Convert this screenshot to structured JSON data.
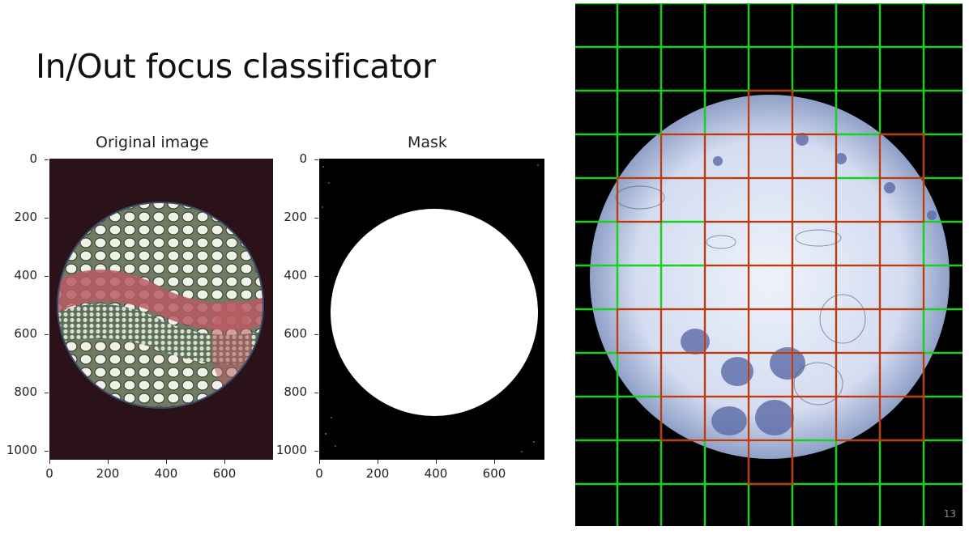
{
  "slide": {
    "title": "In/Out focus classificator",
    "slide_number": "13"
  },
  "plots": {
    "original": {
      "title": "Original image",
      "yticks": [
        "0",
        "200",
        "400",
        "600",
        "800",
        "1000"
      ],
      "xticks": [
        "0",
        "200",
        "400",
        "600"
      ]
    },
    "mask": {
      "title": "Mask",
      "yticks": [
        "0",
        "200",
        "400",
        "600",
        "800",
        "1000"
      ],
      "xticks": [
        "0",
        "200",
        "400",
        "600"
      ]
    }
  },
  "grid_view": {
    "grid_color": "#19d21e",
    "flag_color": "#e8231c"
  }
}
